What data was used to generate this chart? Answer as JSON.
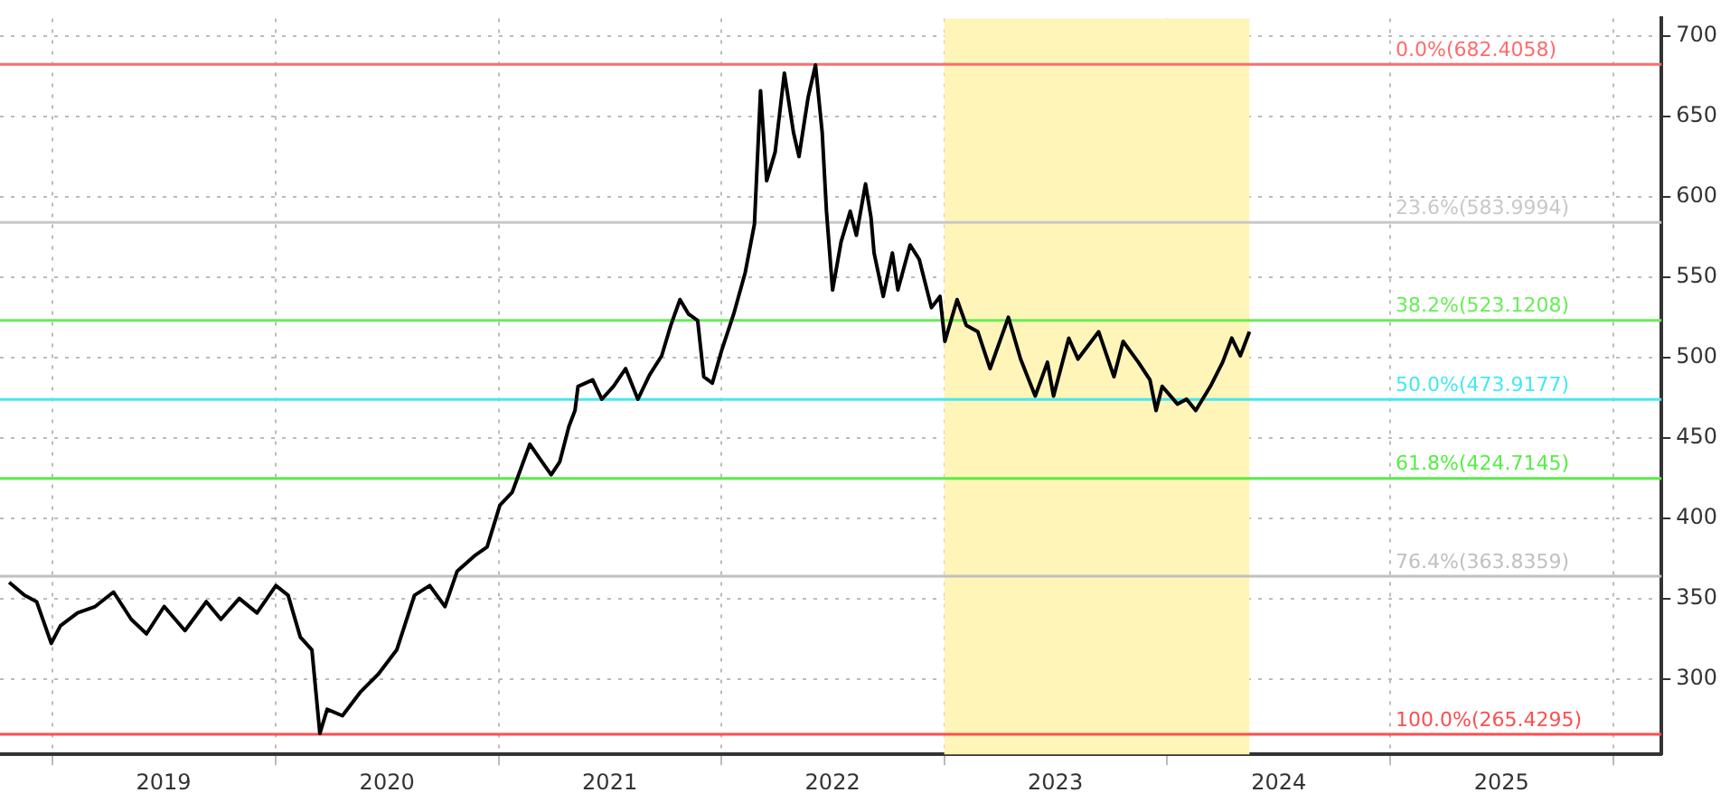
{
  "chart_data": {
    "type": "line",
    "x": [
      "2018-10-22",
      "2018-11-16",
      "2018-12-06",
      "2018-12-30",
      "2019-01-14",
      "2019-02-11",
      "2019-03-12",
      "2019-04-11",
      "2019-05-10",
      "2019-06-04",
      "2019-07-03",
      "2019-08-06",
      "2019-09-10",
      "2019-10-04",
      "2019-11-03",
      "2019-12-02",
      "2020-01-02",
      "2020-01-22",
      "2020-02-11",
      "2020-03-01",
      "2020-03-14",
      "2020-03-26",
      "2020-04-20",
      "2020-05-20",
      "2020-06-18",
      "2020-07-18",
      "2020-08-16",
      "2020-09-10",
      "2020-10-05",
      "2020-10-25",
      "2020-11-24",
      "2020-12-13",
      "2021-01-03",
      "2021-01-23",
      "2021-02-21",
      "2021-03-13",
      "2021-03-28",
      "2021-04-11",
      "2021-04-26",
      "2021-05-06",
      "2021-05-11",
      "2021-06-04",
      "2021-06-19",
      "2021-07-08",
      "2021-07-28",
      "2021-08-17",
      "2021-09-05",
      "2021-09-25",
      "2021-10-10",
      "2021-10-25",
      "2021-11-08",
      "2021-11-23",
      "2021-12-03",
      "2021-12-17",
      "2022-01-01",
      "2022-01-21",
      "2022-02-09",
      "2022-02-24",
      "2022-03-06",
      "2022-03-16",
      "2022-03-30",
      "2022-04-14",
      "2022-04-29",
      "2022-05-08",
      "2022-05-23",
      "2022-06-04",
      "2022-06-15",
      "2022-06-22",
      "2022-07-02",
      "2022-07-16",
      "2022-07-31",
      "2022-08-10",
      "2022-08-25",
      "2022-09-03",
      "2022-09-08",
      "2022-09-23",
      "2022-10-08",
      "2022-10-17",
      "2022-11-06",
      "2022-11-21",
      "2022-12-11",
      "2022-12-25",
      "2023-01-02",
      "2023-01-22",
      "2023-02-06",
      "2023-02-25",
      "2023-03-17",
      "2023-04-16",
      "2023-05-06",
      "2023-05-30",
      "2023-06-19",
      "2023-06-29",
      "2023-07-24",
      "2023-08-08",
      "2023-09-11",
      "2023-10-06",
      "2023-10-21",
      "2023-11-15",
      "2023-12-04",
      "2023-12-14",
      "2023-12-24",
      "2024-01-18",
      "2024-02-02",
      "2024-02-17",
      "2024-03-12",
      "2024-04-01",
      "2024-04-16",
      "2024-04-30",
      "2024-05-15"
    ],
    "series": [
      {
        "color": "#000000",
        "values": [
          360,
          352,
          348,
          322,
          333,
          341,
          345,
          354,
          337,
          328,
          345,
          330,
          348,
          337,
          350,
          341,
          358,
          352,
          326,
          318,
          266,
          281,
          277,
          292,
          303,
          318,
          352,
          358,
          345,
          367,
          377,
          382,
          408,
          416,
          446,
          435,
          427,
          435,
          457,
          467,
          482,
          486,
          474,
          482,
          493,
          474,
          489,
          501,
          520,
          536,
          527,
          523,
          488,
          484,
          504,
          527,
          553,
          583,
          666,
          610,
          628,
          677,
          640,
          625,
          662,
          682,
          640,
          591,
          542,
          572,
          591,
          576,
          608,
          587,
          565,
          538,
          565,
          542,
          570,
          561,
          531,
          538,
          510,
          536,
          520,
          516,
          493,
          525,
          499,
          476,
          497,
          476,
          512,
          499,
          516,
          488,
          510,
          497,
          486,
          467,
          482,
          471,
          474,
          467,
          482,
          497,
          512,
          501,
          516
        ]
      }
    ],
    "xlim": [
      "2018-10-07",
      "2026-03-21"
    ],
    "xticks": [
      {
        "value": "2019-01-01",
        "label": null
      },
      {
        "value": "2019-07-02",
        "label": "2019"
      },
      {
        "value": "2020-01-01",
        "label": null
      },
      {
        "value": "2020-07-02",
        "label": "2020"
      },
      {
        "value": "2021-01-01",
        "label": null
      },
      {
        "value": "2021-07-02",
        "label": "2021"
      },
      {
        "value": "2022-01-01",
        "label": null
      },
      {
        "value": "2022-07-02",
        "label": "2022"
      },
      {
        "value": "2023-01-01",
        "label": null
      },
      {
        "value": "2023-07-02",
        "label": "2023"
      },
      {
        "value": "2024-01-01",
        "label": null
      },
      {
        "value": "2024-07-02",
        "label": "2024"
      },
      {
        "value": "2025-01-01",
        "label": null
      },
      {
        "value": "2025-07-02",
        "label": "2025"
      },
      {
        "value": "2026-01-01",
        "label": null
      }
    ],
    "ylim": [
      253,
      711
    ],
    "yticks": [
      300,
      350,
      400,
      450,
      500,
      550,
      600,
      650,
      700
    ],
    "grid": true,
    "line_style": "solid",
    "ref_lines": [
      {
        "axis": "y",
        "value": 682.4058,
        "label": "0.0%(682.4058)",
        "color": "#ff6b6b"
      },
      {
        "axis": "y",
        "value": 583.9994,
        "label": "23.6%(583.9994)",
        "color": "#c8c8c8"
      },
      {
        "axis": "y",
        "value": 523.1208,
        "label": "38.2%(523.1208)",
        "color": "#66ee55"
      },
      {
        "axis": "y",
        "value": 473.9177,
        "label": "50.0%(473.9177)",
        "color": "#44e8f0"
      },
      {
        "axis": "y",
        "value": 424.7145,
        "label": "61.8%(424.7145)",
        "color": "#55ee44"
      },
      {
        "axis": "y",
        "value": 363.8359,
        "label": "76.4%(363.8359)",
        "color": "#c0c0c0"
      },
      {
        "axis": "y",
        "value": 265.4295,
        "label": "100.0%(265.4295)",
        "color": "#ff4d4d"
      }
    ],
    "bands": [
      {
        "axis": "x",
        "from": "2023-01-01",
        "to": "2024-05-15",
        "color": "#fff5b8"
      }
    ]
  }
}
